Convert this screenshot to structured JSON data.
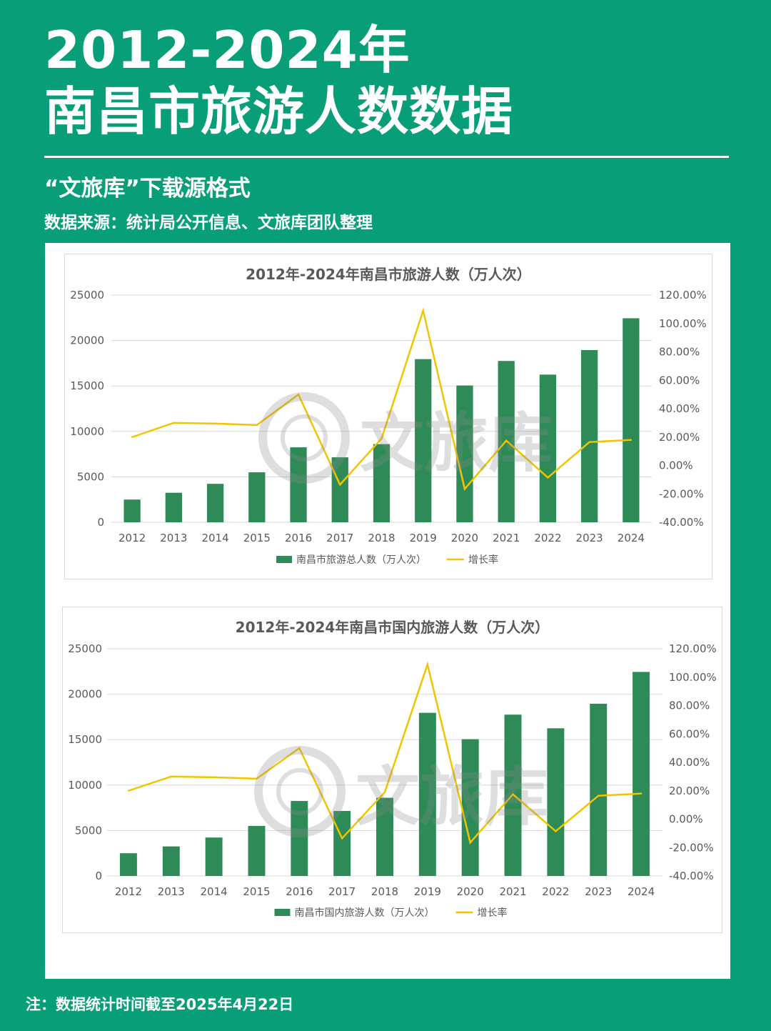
{
  "header": {
    "title_line1": "2012-2024年",
    "title_line2": "南昌市旅游人数数据",
    "subtitle": "“文旅库”下载源格式",
    "source": "数据来源：统计局公开信息、文旅库团队整理"
  },
  "watermark": {
    "text": "文旅库",
    "icon": "watermark-logo-icon"
  },
  "footnote": "注：数据统计时间截至2025年4月22日",
  "colors": {
    "background": "#079e78",
    "bar": "#2e8b57",
    "line": "#f2c400"
  },
  "chart_data": [
    {
      "type": "bar",
      "title": "2012年-2024年南昌市旅游人数（万人次）",
      "categories": [
        "2012",
        "2013",
        "2014",
        "2015",
        "2016",
        "2017",
        "2018",
        "2019",
        "2020",
        "2021",
        "2022",
        "2023",
        "2024"
      ],
      "series": [
        {
          "name": "南昌市旅游总人数（万人次）",
          "type": "bar",
          "axis": "left",
          "values": [
            2500,
            3250,
            4230,
            5500,
            8250,
            7150,
            8600,
            17950,
            15050,
            17750,
            16250,
            18950,
            22450
          ]
        },
        {
          "name": "增长率",
          "type": "line",
          "axis": "right",
          "values": [
            20.0,
            30.0,
            29.5,
            28.5,
            50.0,
            -13.5,
            19.0,
            109.0,
            -16.5,
            17.5,
            -8.5,
            16.5,
            18.0
          ]
        }
      ],
      "ylim": [
        0,
        25000
      ],
      "yticks": [
        "0",
        "5000",
        "10000",
        "15000",
        "20000",
        "25000"
      ],
      "y2lim": [
        -40,
        120
      ],
      "y2ticks": [
        "-40.00%",
        "-20.00%",
        "0.00%",
        "20.00%",
        "40.00%",
        "60.00%",
        "80.00%",
        "100.00%",
        "120.00%"
      ],
      "grid": true,
      "legend": "bottom"
    },
    {
      "type": "bar",
      "title": "2012年-2024年南昌市国内旅游人数（万人次）",
      "categories": [
        "2012",
        "2013",
        "2014",
        "2015",
        "2016",
        "2017",
        "2018",
        "2019",
        "2020",
        "2021",
        "2022",
        "2023",
        "2024"
      ],
      "series": [
        {
          "name": "南昌市国内旅游人数（万人次）",
          "type": "bar",
          "axis": "left",
          "values": [
            2500,
            3250,
            4230,
            5500,
            8250,
            7150,
            8600,
            17950,
            15050,
            17750,
            16250,
            18950,
            22450
          ]
        },
        {
          "name": "增长率",
          "type": "line",
          "axis": "right",
          "values": [
            20.0,
            30.0,
            29.5,
            28.5,
            50.0,
            -13.5,
            19.0,
            109.0,
            -16.5,
            17.5,
            -8.5,
            16.5,
            18.0
          ]
        }
      ],
      "ylim": [
        0,
        25000
      ],
      "yticks": [
        "0",
        "5000",
        "10000",
        "15000",
        "20000",
        "25000"
      ],
      "y2lim": [
        -40,
        120
      ],
      "y2ticks": [
        "-40.00%",
        "-20.00%",
        "0.00%",
        "20.00%",
        "40.00%",
        "60.00%",
        "80.00%",
        "100.00%",
        "120.00%"
      ],
      "grid": true,
      "legend": "bottom"
    }
  ]
}
